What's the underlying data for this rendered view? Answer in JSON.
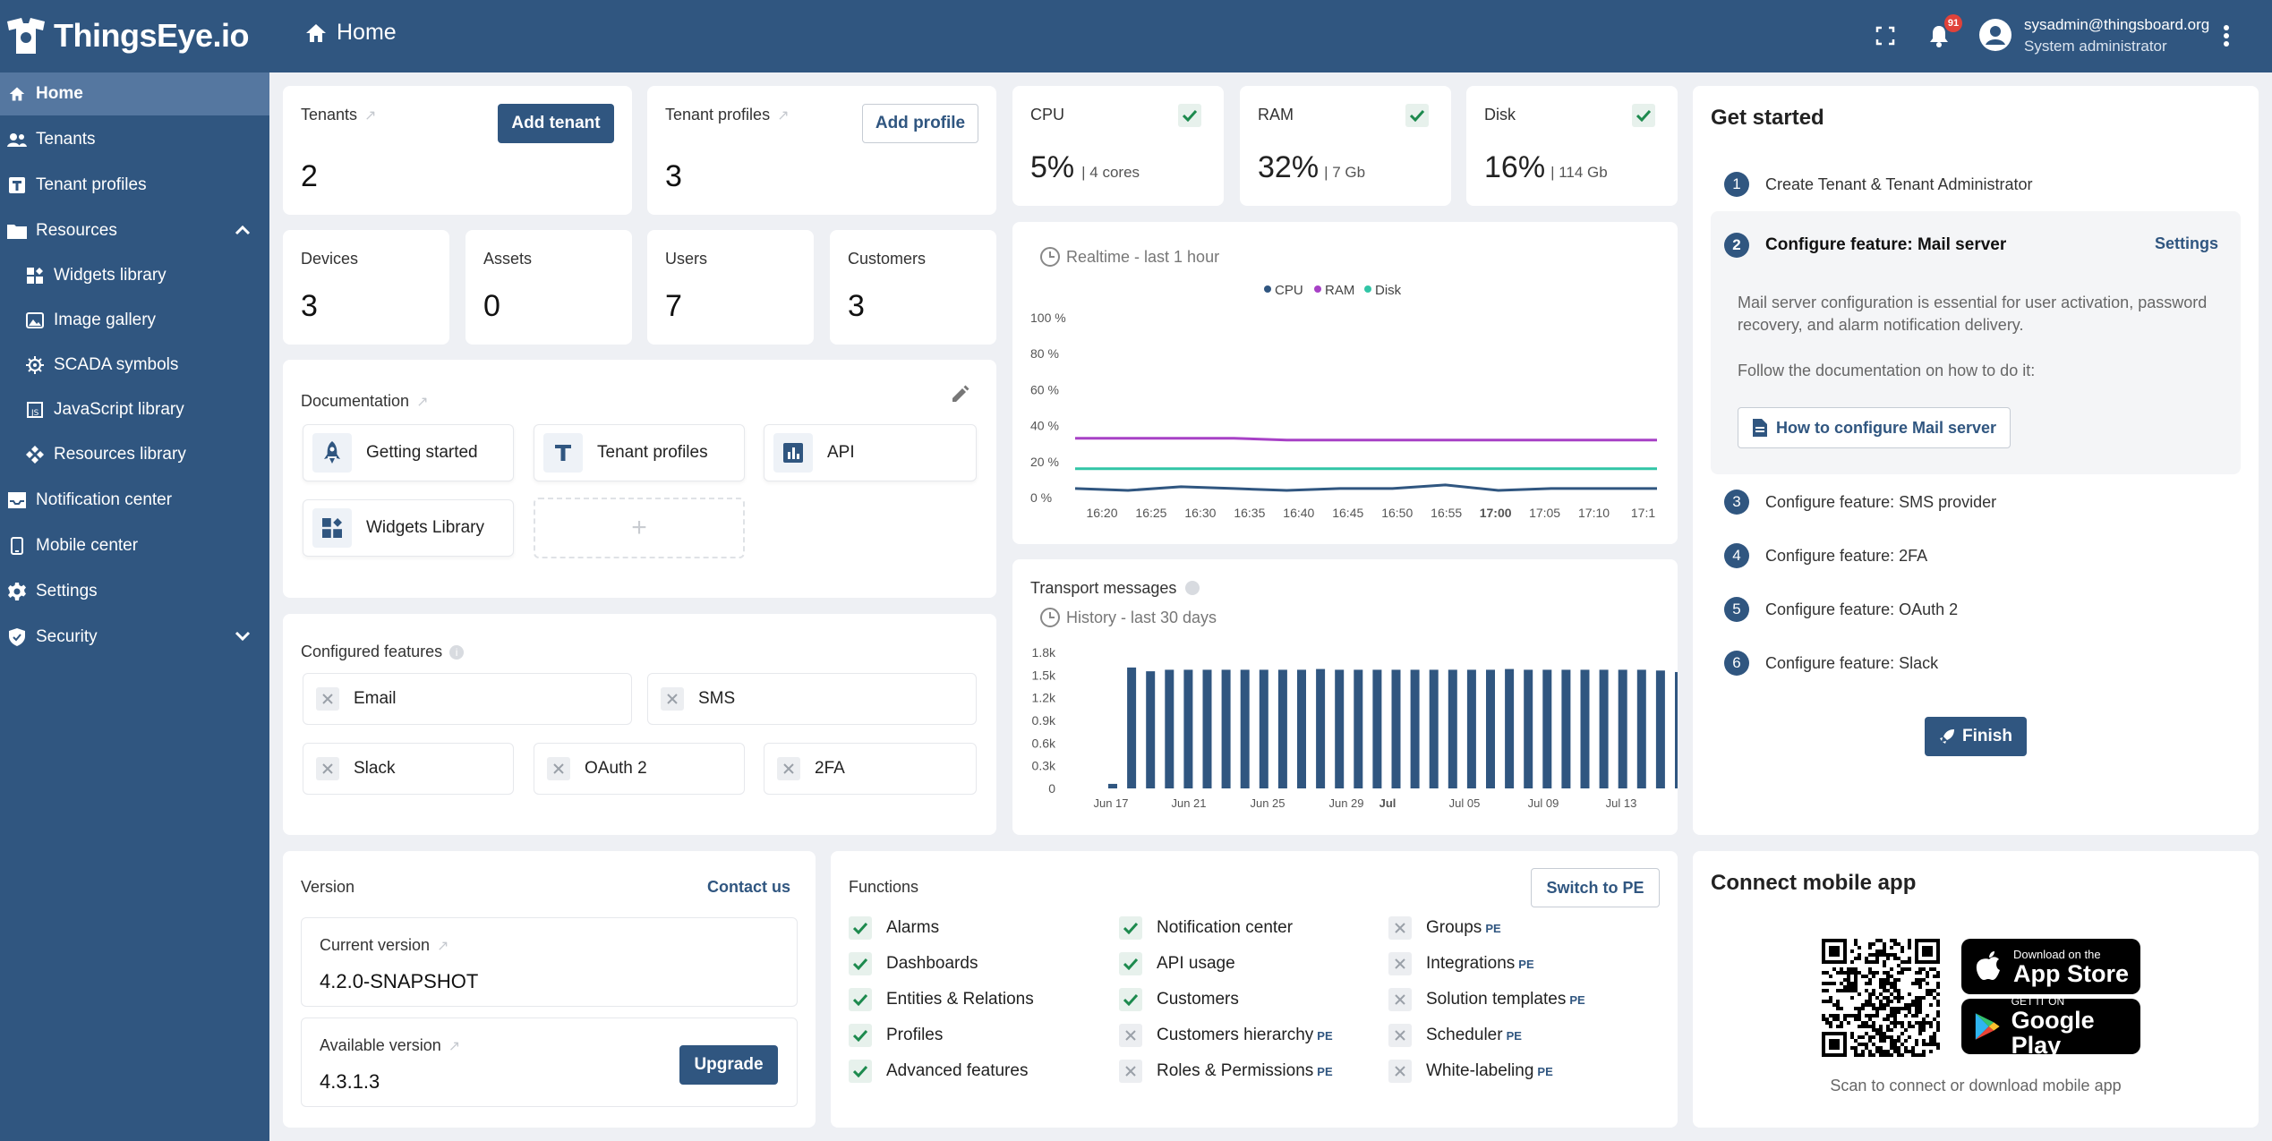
{
  "topbar": {
    "brand": "ThingsEye.io",
    "breadcrumb": "Home",
    "notification_count": "91",
    "user_email": "sysadmin@thingsboard.org",
    "user_role": "System administrator"
  },
  "sidebar": {
    "items": [
      {
        "label": "Home"
      },
      {
        "label": "Tenants"
      },
      {
        "label": "Tenant profiles"
      },
      {
        "label": "Resources"
      },
      {
        "label": "Widgets library"
      },
      {
        "label": "Image gallery"
      },
      {
        "label": "SCADA symbols"
      },
      {
        "label": "JavaScript library"
      },
      {
        "label": "Resources library"
      },
      {
        "label": "Notification center"
      },
      {
        "label": "Mobile center"
      },
      {
        "label": "Settings"
      },
      {
        "label": "Security"
      }
    ]
  },
  "stats": {
    "tenants": {
      "label": "Tenants",
      "value": "2",
      "button": "Add tenant"
    },
    "tenant_profiles": {
      "label": "Tenant profiles",
      "value": "3",
      "button": "Add profile"
    },
    "devices": {
      "label": "Devices",
      "value": "3"
    },
    "assets": {
      "label": "Assets",
      "value": "0"
    },
    "users": {
      "label": "Users",
      "value": "7"
    },
    "customers": {
      "label": "Customers",
      "value": "3"
    }
  },
  "system": {
    "cpu": {
      "label": "CPU",
      "value": "5%",
      "detail": "| 4 cores"
    },
    "ram": {
      "label": "RAM",
      "value": "32%",
      "detail": "| 7 Gb"
    },
    "disk": {
      "label": "Disk",
      "value": "16%",
      "detail": "| 114 Gb"
    }
  },
  "documentation": {
    "title": "Documentation",
    "tiles": [
      {
        "label": "Getting started"
      },
      {
        "label": "Tenant profiles"
      },
      {
        "label": "API"
      },
      {
        "label": "Widgets Library"
      }
    ],
    "add_symbol": "+"
  },
  "features": {
    "title": "Configured features",
    "items": [
      {
        "label": "Email"
      },
      {
        "label": "SMS"
      },
      {
        "label": "Slack"
      },
      {
        "label": "OAuth 2"
      },
      {
        "label": "2FA"
      }
    ]
  },
  "chart_data": [
    {
      "type": "line",
      "title": "Realtime - last 1 hour",
      "x": [
        "16:20",
        "16:25",
        "16:30",
        "16:35",
        "16:40",
        "16:45",
        "16:50",
        "16:55",
        "17:00",
        "17:05",
        "17:10",
        "17:1"
      ],
      "yticks": [
        "100 %",
        "80 %",
        "60 %",
        "40 %",
        "20 %",
        "0 %"
      ],
      "ylim": [
        0,
        100
      ],
      "legend": "top-center",
      "series": [
        {
          "name": "CPU",
          "color": "#305680",
          "values": [
            5,
            4,
            6,
            5,
            4,
            5,
            5,
            7,
            4,
            5,
            5,
            5
          ]
        },
        {
          "name": "RAM",
          "color": "#a741c6",
          "values": [
            33,
            33,
            33,
            33,
            32,
            32,
            32,
            32,
            32,
            32,
            32,
            32
          ]
        },
        {
          "name": "Disk",
          "color": "#31c5a6",
          "values": [
            16,
            16,
            16,
            16,
            16,
            16,
            16,
            16,
            16,
            16,
            16,
            16
          ]
        }
      ]
    },
    {
      "type": "bar",
      "title": "Transport messages",
      "subtitle": "History - last 30 days",
      "x_ticks": [
        "Jun 17",
        "Jun 21",
        "Jun 25",
        "Jun 29",
        "Jul",
        "Jul 05",
        "Jul 09",
        "Jul 13"
      ],
      "yticks": [
        "1.8k",
        "1.5k",
        "1.2k",
        "0.9k",
        "0.6k",
        "0.3k",
        "0"
      ],
      "ylim": [
        0,
        1800
      ],
      "color": "#305680",
      "values": [
        60,
        1600,
        1550,
        1570,
        1570,
        1570,
        1570,
        1570,
        1570,
        1570,
        1570,
        1580,
        1570,
        1570,
        1570,
        1570,
        1570,
        1570,
        1570,
        1570,
        1570,
        1580,
        1570,
        1570,
        1570,
        1570,
        1570,
        1570,
        1570,
        1560,
        1540
      ]
    }
  ],
  "get_started": {
    "title": "Get started",
    "steps": [
      {
        "num": "1",
        "label": "Create Tenant & Tenant Administrator"
      },
      {
        "num": "2",
        "label": "Configure feature: Mail server"
      },
      {
        "num": "3",
        "label": "Configure feature: SMS provider"
      },
      {
        "num": "4",
        "label": "Configure feature: 2FA"
      },
      {
        "num": "5",
        "label": "Configure feature: OAuth 2"
      },
      {
        "num": "6",
        "label": "Configure feature: Slack"
      }
    ],
    "settings_link": "Settings",
    "mail_desc": "Mail server configuration is essential for user activation, password recovery, and alarm notification delivery.",
    "mail_follow": "Follow the documentation on how to do it:",
    "mail_button": "How to configure Mail server",
    "finish": "Finish"
  },
  "version": {
    "title": "Version",
    "contact": "Contact us",
    "current_label": "Current version",
    "current_value": "4.2.0-SNAPSHOT",
    "available_label": "Available version",
    "available_value": "4.3.1.3",
    "upgrade": "Upgrade"
  },
  "functions": {
    "title": "Functions",
    "switch": "Switch to PE",
    "pe_tag": "PE",
    "col1": [
      {
        "label": "Alarms"
      },
      {
        "label": "Dashboards"
      },
      {
        "label": "Entities & Relations"
      },
      {
        "label": "Profiles"
      },
      {
        "label": "Advanced features"
      }
    ],
    "col2": [
      {
        "label": "Notification center"
      },
      {
        "label": "API usage"
      },
      {
        "label": "Customers"
      },
      {
        "label": "Customers hierarchy"
      },
      {
        "label": "Roles & Permissions"
      }
    ],
    "col3": [
      {
        "label": "Groups"
      },
      {
        "label": "Integrations"
      },
      {
        "label": "Solution templates"
      },
      {
        "label": "Scheduler"
      },
      {
        "label": "White-labeling"
      }
    ]
  },
  "mobile": {
    "title": "Connect mobile app",
    "appstore_small": "Download on the",
    "appstore_big": "App Store",
    "gplay_small": "GET IT ON",
    "gplay_big": "Google Play",
    "caption": "Scan to connect or download mobile app"
  }
}
